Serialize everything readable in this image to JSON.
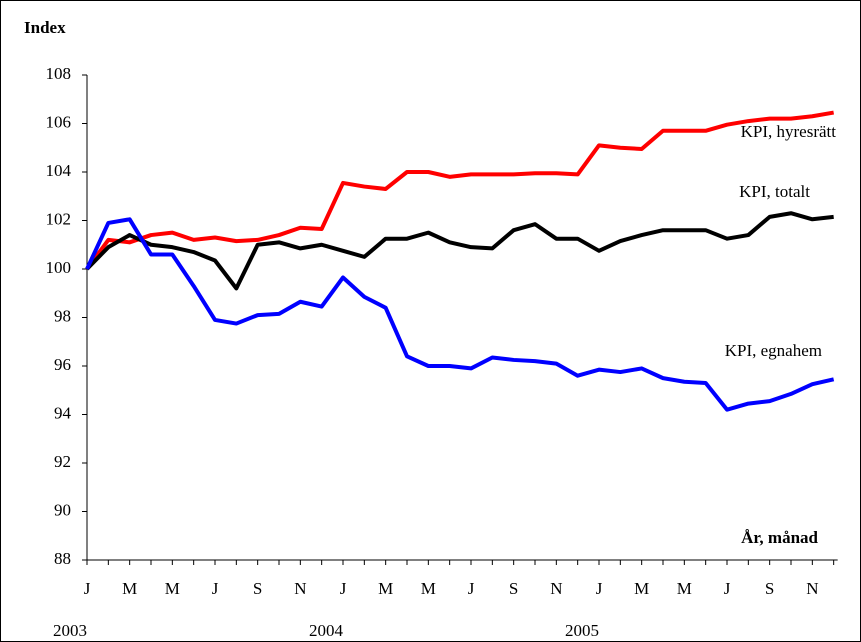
{
  "chart_data": {
    "type": "line",
    "y_label": "Index",
    "x_label": "År, månad",
    "categories": [
      "J",
      null,
      "M",
      null,
      "M",
      null,
      "J",
      null,
      "S",
      null,
      "N",
      null,
      "J",
      null,
      "M",
      null,
      "M",
      null,
      "J",
      null,
      "S",
      null,
      "N",
      null,
      "J",
      null,
      "M",
      null,
      "M",
      null,
      "J",
      null,
      "S",
      null,
      "N",
      null
    ],
    "years": [
      "2003",
      "2004",
      "2005"
    ],
    "ylim": [
      88,
      108
    ],
    "yticks": [
      88,
      90,
      92,
      94,
      96,
      98,
      100,
      102,
      104,
      106,
      108
    ],
    "series": [
      {
        "name": "KPI, hyresrätt",
        "color": "#ff0000",
        "values": [
          100,
          101.2,
          101.1,
          101.4,
          101.5,
          101.2,
          101.3,
          101.15,
          101.2,
          101.4,
          101.7,
          101.65,
          103.55,
          103.4,
          103.3,
          104.0,
          104.0,
          103.8,
          103.9,
          103.9,
          103.9,
          103.95,
          103.95,
          103.9,
          105.1,
          105.0,
          104.95,
          105.7,
          105.7,
          105.7,
          105.95,
          106.1,
          106.2,
          106.2,
          106.3,
          106.45
        ]
      },
      {
        "name": "KPI, totalt",
        "color": "#000000",
        "values": [
          100,
          100.9,
          101.4,
          101.0,
          100.9,
          100.7,
          100.35,
          99.2,
          101.0,
          101.1,
          100.85,
          101.0,
          100.75,
          100.5,
          101.25,
          101.25,
          101.5,
          101.1,
          100.9,
          100.85,
          101.6,
          101.85,
          101.25,
          101.25,
          100.75,
          101.15,
          101.4,
          101.6,
          101.6,
          101.6,
          101.25,
          101.4,
          102.15,
          102.3,
          102.05,
          102.15
        ]
      },
      {
        "name": "KPI, egnahem",
        "color": "#0000ff",
        "values": [
          100,
          101.9,
          102.05,
          100.6,
          100.6,
          99.3,
          97.9,
          97.75,
          98.1,
          98.15,
          98.65,
          98.45,
          99.65,
          98.85,
          98.4,
          96.4,
          96.0,
          96.0,
          95.9,
          96.35,
          96.25,
          96.2,
          96.1,
          95.6,
          95.85,
          95.75,
          95.9,
          95.5,
          95.35,
          95.3,
          94.2,
          94.45,
          94.55,
          94.85,
          95.25,
          95.45
        ]
      }
    ]
  }
}
